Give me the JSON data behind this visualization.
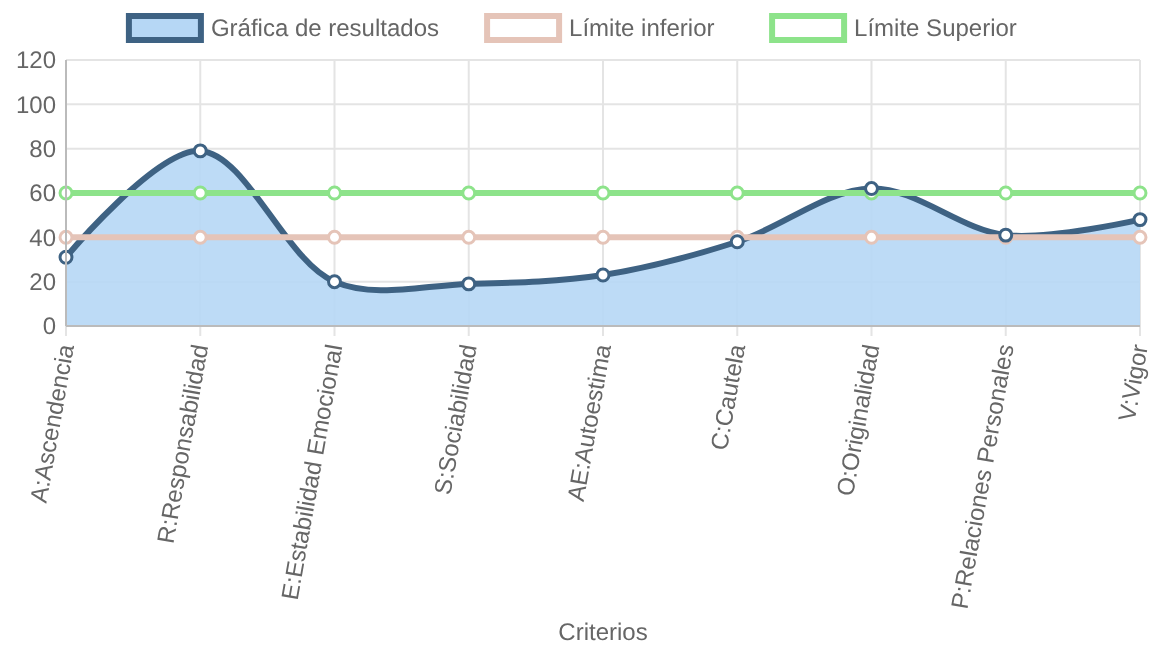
{
  "chart_data": {
    "type": "line",
    "xlabel": "Criterios",
    "categories": [
      "A:Ascendencia",
      "R:Responsabilidad",
      "E:Estabilidad Emocional",
      "S:Sociabilidad",
      "AE:Autoestima",
      "C:Cautela",
      "O:Originalidad",
      "P:Relaciones Personales",
      "V:Vigor"
    ],
    "series": [
      {
        "name": "Gráfica de resultados",
        "type": "area",
        "color": "#3e6283",
        "values": [
          31,
          79,
          20,
          19,
          23,
          38,
          62,
          41,
          48
        ]
      },
      {
        "name": "Límite inferior",
        "type": "line",
        "color": "#e5c4b8",
        "values": [
          40,
          40,
          40,
          40,
          40,
          40,
          40,
          40,
          40
        ]
      },
      {
        "name": "Límite Superior",
        "type": "line",
        "color": "#8de38a",
        "values": [
          60,
          60,
          60,
          60,
          60,
          60,
          60,
          60,
          60
        ]
      }
    ],
    "ylim": [
      0,
      120
    ],
    "yticks": [
      0,
      20,
      40,
      60,
      80,
      100,
      120
    ],
    "grid": true,
    "legend": "top",
    "marker": "circle"
  }
}
